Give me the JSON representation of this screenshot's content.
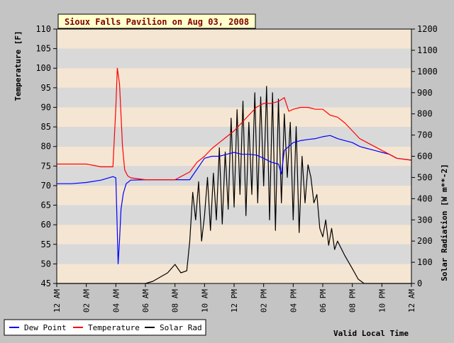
{
  "chart_data": {
    "type": "line",
    "title": "Sioux Falls Pavilion on Aug 03, 2008",
    "xlabel": "Valid Local Time",
    "ylabel_left": "Temperature [F]",
    "ylabel_right": "Solar Radiation [W m**-2]",
    "x_unit": "hours",
    "xlim": [
      0,
      24
    ],
    "ylim_left": [
      45,
      110
    ],
    "ylim_right": [
      0,
      1200
    ],
    "x_ticks": [
      {
        "value": 0,
        "label": "12 AM"
      },
      {
        "value": 2,
        "label": "02 AM"
      },
      {
        "value": 4,
        "label": "04 AM"
      },
      {
        "value": 6,
        "label": "06 AM"
      },
      {
        "value": 8,
        "label": "08 AM"
      },
      {
        "value": 10,
        "label": "10 AM"
      },
      {
        "value": 12,
        "label": "12 PM"
      },
      {
        "value": 14,
        "label": "02 PM"
      },
      {
        "value": 16,
        "label": "04 PM"
      },
      {
        "value": 18,
        "label": "06 PM"
      },
      {
        "value": 20,
        "label": "08 PM"
      },
      {
        "value": 22,
        "label": "10 PM"
      },
      {
        "value": 24,
        "label": "12 AM"
      }
    ],
    "y_ticks_left": [
      45,
      50,
      55,
      60,
      65,
      70,
      75,
      80,
      85,
      90,
      95,
      100,
      105,
      110
    ],
    "y_ticks_right": [
      0,
      100,
      200,
      300,
      400,
      500,
      600,
      700,
      800,
      900,
      1000,
      1100,
      1200
    ],
    "series": [
      {
        "name": "Dew Point",
        "axis": "left",
        "color": "#0000ff",
        "points": [
          [
            0,
            70.5
          ],
          [
            1,
            70.5
          ],
          [
            2,
            70.8
          ],
          [
            3,
            71.4
          ],
          [
            3.8,
            72.3
          ],
          [
            4.0,
            72.0
          ],
          [
            4.1,
            58
          ],
          [
            4.15,
            50
          ],
          [
            4.25,
            56
          ],
          [
            4.35,
            64
          ],
          [
            4.5,
            68
          ],
          [
            4.7,
            70.5
          ],
          [
            5.0,
            71.4
          ],
          [
            6,
            71.5
          ],
          [
            7,
            71.5
          ],
          [
            8,
            71.5
          ],
          [
            9,
            71.5
          ],
          [
            10,
            77.0
          ],
          [
            10.5,
            77.5
          ],
          [
            11,
            77.5
          ],
          [
            11.5,
            78
          ],
          [
            12,
            78.5
          ],
          [
            12.5,
            78
          ],
          [
            13,
            78
          ],
          [
            13.5,
            77.8
          ],
          [
            14,
            77
          ],
          [
            14.5,
            76
          ],
          [
            15,
            75.5
          ],
          [
            15.2,
            73
          ],
          [
            15.4,
            79
          ],
          [
            15.7,
            80
          ],
          [
            16,
            81
          ],
          [
            16.5,
            81.5
          ],
          [
            17,
            81.8
          ],
          [
            17.5,
            82
          ],
          [
            18,
            82.5
          ],
          [
            18.5,
            82.8
          ],
          [
            19,
            82
          ],
          [
            19.5,
            81.5
          ],
          [
            20,
            81
          ],
          [
            20.5,
            80
          ],
          [
            21,
            79.5
          ],
          [
            21.5,
            79
          ],
          [
            22,
            78.5
          ],
          [
            22.5,
            78
          ],
          [
            23,
            77
          ],
          [
            24,
            76.5
          ]
        ]
      },
      {
        "name": "Temperature",
        "axis": "left",
        "color": "#ff0000",
        "points": [
          [
            0,
            75.5
          ],
          [
            1,
            75.5
          ],
          [
            2,
            75.5
          ],
          [
            3,
            74.8
          ],
          [
            3.8,
            74.8
          ],
          [
            4.0,
            90
          ],
          [
            4.1,
            100
          ],
          [
            4.25,
            96
          ],
          [
            4.35,
            88
          ],
          [
            4.45,
            80
          ],
          [
            4.6,
            74
          ],
          [
            4.8,
            72.5
          ],
          [
            5,
            72
          ],
          [
            6,
            71.5
          ],
          [
            7,
            71.5
          ],
          [
            8,
            71.5
          ],
          [
            9,
            73.5
          ],
          [
            9.5,
            76
          ],
          [
            10,
            77.5
          ],
          [
            10.5,
            79.5
          ],
          [
            11,
            81
          ],
          [
            11.5,
            82.5
          ],
          [
            12,
            84
          ],
          [
            12.5,
            86
          ],
          [
            13,
            88
          ],
          [
            13.5,
            90
          ],
          [
            14,
            91
          ],
          [
            14.5,
            91
          ],
          [
            15,
            91.5
          ],
          [
            15.4,
            92.5
          ],
          [
            15.7,
            89
          ],
          [
            16,
            89.5
          ],
          [
            16.5,
            90
          ],
          [
            17,
            90
          ],
          [
            17.5,
            89.5
          ],
          [
            18,
            89.5
          ],
          [
            18.5,
            88
          ],
          [
            19,
            87.5
          ],
          [
            19.5,
            86
          ],
          [
            20,
            84
          ],
          [
            20.5,
            82
          ],
          [
            21,
            81
          ],
          [
            21.5,
            80
          ],
          [
            22,
            79
          ],
          [
            22.5,
            78
          ],
          [
            23,
            77
          ],
          [
            24,
            76.5
          ]
        ]
      },
      {
        "name": "Solar Rad",
        "axis": "right",
        "color": "#000000",
        "points": [
          [
            0,
            0
          ],
          [
            5.6,
            0
          ],
          [
            6,
            0
          ],
          [
            6.5,
            10
          ],
          [
            7,
            30
          ],
          [
            7.5,
            50
          ],
          [
            8,
            90
          ],
          [
            8.4,
            50
          ],
          [
            8.8,
            60
          ],
          [
            9.0,
            200
          ],
          [
            9.2,
            430
          ],
          [
            9.4,
            300
          ],
          [
            9.6,
            480
          ],
          [
            9.8,
            200
          ],
          [
            10,
            320
          ],
          [
            10.2,
            500
          ],
          [
            10.4,
            250
          ],
          [
            10.6,
            520
          ],
          [
            10.8,
            300
          ],
          [
            11,
            640
          ],
          [
            11.2,
            280
          ],
          [
            11.4,
            620
          ],
          [
            11.6,
            350
          ],
          [
            11.8,
            780
          ],
          [
            12,
            360
          ],
          [
            12.2,
            820
          ],
          [
            12.4,
            420
          ],
          [
            12.6,
            860
          ],
          [
            12.8,
            320
          ],
          [
            13,
            760
          ],
          [
            13.2,
            420
          ],
          [
            13.4,
            900
          ],
          [
            13.6,
            380
          ],
          [
            13.8,
            880
          ],
          [
            14,
            460
          ],
          [
            14.2,
            930
          ],
          [
            14.4,
            300
          ],
          [
            14.6,
            900
          ],
          [
            14.8,
            250
          ],
          [
            15,
            870
          ],
          [
            15.2,
            380
          ],
          [
            15.4,
            800
          ],
          [
            15.6,
            500
          ],
          [
            15.8,
            760
          ],
          [
            16,
            300
          ],
          [
            16.2,
            740
          ],
          [
            16.4,
            240
          ],
          [
            16.6,
            600
          ],
          [
            16.8,
            380
          ],
          [
            17,
            560
          ],
          [
            17.2,
            500
          ],
          [
            17.4,
            380
          ],
          [
            17.6,
            420
          ],
          [
            17.8,
            260
          ],
          [
            18,
            220
          ],
          [
            18.2,
            300
          ],
          [
            18.4,
            180
          ],
          [
            18.6,
            260
          ],
          [
            18.8,
            160
          ],
          [
            19,
            200
          ],
          [
            19.5,
            130
          ],
          [
            20,
            70
          ],
          [
            20.4,
            20
          ],
          [
            20.8,
            0
          ],
          [
            21,
            0
          ],
          [
            24,
            0
          ]
        ]
      }
    ],
    "legend": {
      "position": "bottom-left",
      "items": [
        {
          "label": "Dew Point",
          "color": "#0000ff"
        },
        {
          "label": "Temperature",
          "color": "#ff0000"
        },
        {
          "label": "Solar Rad",
          "color": "#000000"
        }
      ]
    },
    "style": {
      "band_colors": [
        "#f5e6d3",
        "#d9d9d9"
      ],
      "title_bg": "#ffffcc",
      "title_color": "#800000",
      "page_bg": "#c4c4c4"
    }
  }
}
